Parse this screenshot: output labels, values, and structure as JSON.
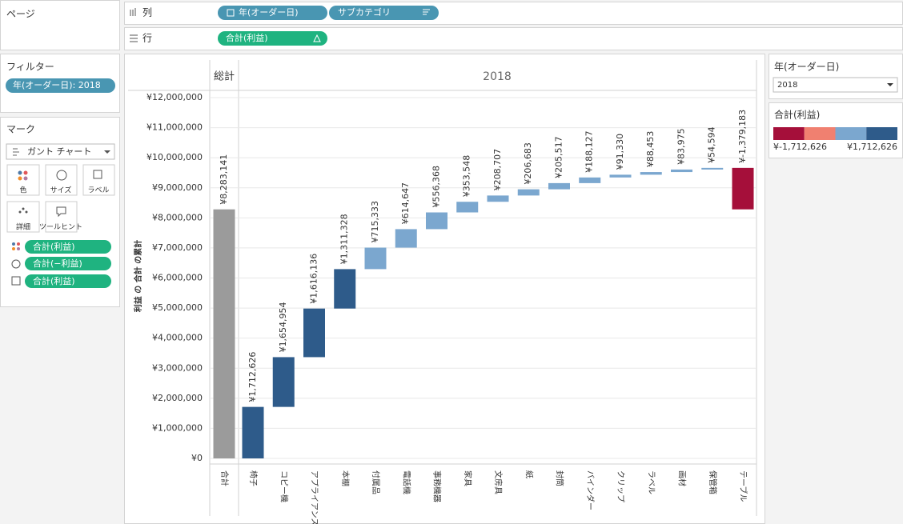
{
  "shelves": {
    "pages": "ページ",
    "columns": {
      "label": "列",
      "pills": [
        "年(オーダー日)",
        "サブカテゴリ"
      ]
    },
    "rows": {
      "label": "行",
      "pills": [
        "合計(利益)"
      ]
    }
  },
  "filters": {
    "title": "フィルター",
    "pills": [
      "年(オーダー日): 2018"
    ]
  },
  "marks": {
    "title": "マーク",
    "type": "ガント チャート",
    "buttons": [
      "色",
      "サイズ",
      "ラベル",
      "詳細",
      "ツールヒント"
    ],
    "pills": [
      "合計(利益)",
      "合計(−利益)",
      "合計(利益)"
    ]
  },
  "quick_filter": {
    "title": "年(オーダー日)",
    "value": "2018"
  },
  "chart_data": {
    "type": "waterfall",
    "header_total": "総計",
    "header_year": "2018",
    "ylabel": "利益 の 合計 の累計",
    "total": {
      "category": "合計",
      "value": 8283141,
      "value_label": "¥8,283,141",
      "color": "#9b9b9b"
    },
    "categories": [
      "椅子",
      "コピー機",
      "アプライアンス",
      "本棚",
      "付属品",
      "電話機",
      "事務機器",
      "家具",
      "文房具",
      "紙",
      "封筒",
      "バインダー",
      "クリップ",
      "ラベル",
      "画材",
      "保管箱",
      "テーブル"
    ],
    "values": [
      1712626,
      1654954,
      1616136,
      1311328,
      715333,
      614647,
      556368,
      353548,
      208707,
      206683,
      205517,
      188127,
      91330,
      88453,
      83975,
      54594,
      -1379183
    ],
    "value_labels": [
      "¥1,712,626",
      "¥1,654,954",
      "¥1,616,136",
      "¥1,311,328",
      "¥715,333",
      "¥614,647",
      "¥556,368",
      "¥353,548",
      "¥208,707",
      "¥206,683",
      "¥205,517",
      "¥188,127",
      "¥91,330",
      "¥88,453",
      "¥83,975",
      "¥54,594",
      "¥-1,379,183"
    ],
    "ylim": [
      0,
      12000000
    ],
    "yticks": [
      {
        "value": 0,
        "label": "¥0"
      },
      {
        "value": 1000000,
        "label": "¥1,000,000"
      },
      {
        "value": 2000000,
        "label": "¥2,000,000"
      },
      {
        "value": 3000000,
        "label": "¥3,000,000"
      },
      {
        "value": 4000000,
        "label": "¥4,000,000"
      },
      {
        "value": 5000000,
        "label": "¥5,000,000"
      },
      {
        "value": 6000000,
        "label": "¥6,000,000"
      },
      {
        "value": 7000000,
        "label": "¥7,000,000"
      },
      {
        "value": 8000000,
        "label": "¥8,000,000"
      },
      {
        "value": 9000000,
        "label": "¥9,000,000"
      },
      {
        "value": 10000000,
        "label": "¥10,000,000"
      },
      {
        "value": 11000000,
        "label": "¥11,000,000"
      },
      {
        "value": 12000000,
        "label": "¥12,000,000"
      }
    ],
    "grid": true,
    "legend": {
      "title": "合計(利益)",
      "range": [
        -1712626,
        1712626
      ],
      "min_label": "¥-1,712,626",
      "max_label": "¥1,712,626",
      "colors": [
        "#a50f3a",
        "#f08070",
        "#7ba7cf",
        "#2e5b8a"
      ]
    }
  }
}
